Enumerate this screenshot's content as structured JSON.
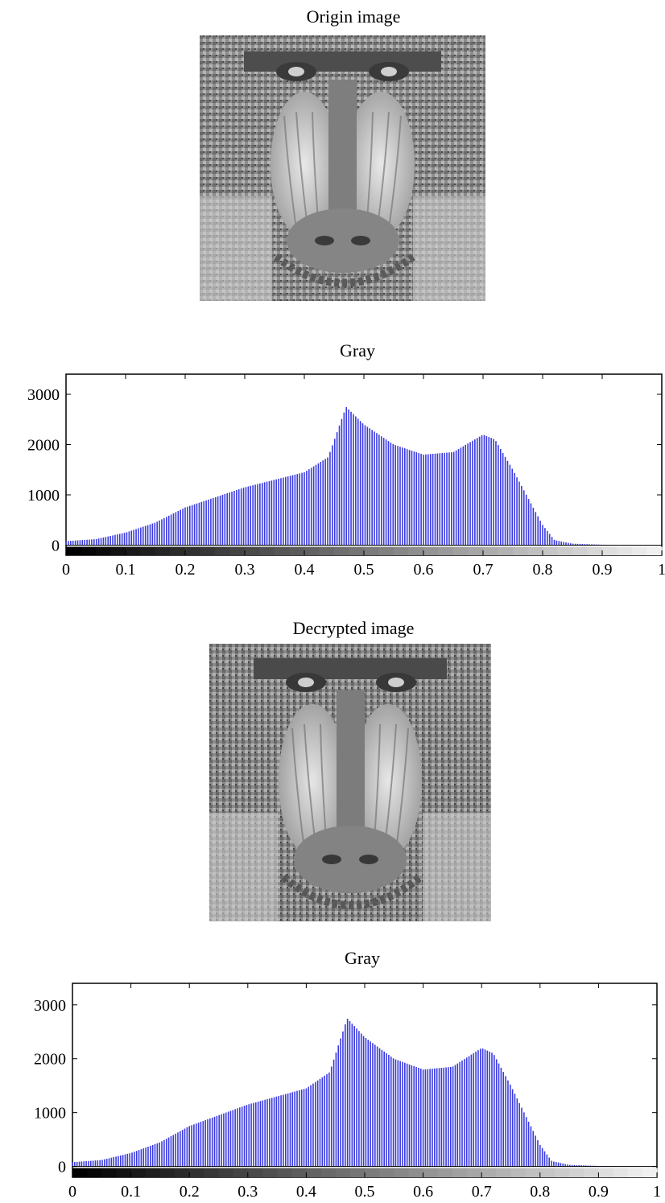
{
  "panels": [
    {
      "title": "Origin image"
    },
    {
      "title": "Gray"
    },
    {
      "title": "Decrypted image"
    },
    {
      "title": "Gray"
    }
  ],
  "chart_data": [
    {
      "type": "bar",
      "title": "Gray",
      "xlim": [
        0,
        1
      ],
      "ylim": [
        -200,
        3400
      ],
      "xticks": [
        "0",
        "0.1",
        "0.2",
        "0.3",
        "0.4",
        "0.5",
        "0.6",
        "0.7",
        "0.8",
        "0.9",
        "1"
      ],
      "yticks": [
        "0",
        "1000",
        "2000",
        "3000"
      ],
      "bar_color": "#3a3ae0",
      "colorbar": "grayscale",
      "x": [
        0.0,
        0.05,
        0.1,
        0.15,
        0.2,
        0.25,
        0.3,
        0.35,
        0.4,
        0.44,
        0.47,
        0.5,
        0.55,
        0.6,
        0.65,
        0.7,
        0.72,
        0.75,
        0.8,
        0.82,
        0.85,
        0.9,
        1.0
      ],
      "values": [
        80,
        120,
        250,
        450,
        750,
        950,
        1150,
        1300,
        1450,
        1750,
        2750,
        2400,
        2000,
        1800,
        1850,
        2200,
        2100,
        1500,
        400,
        100,
        30,
        10,
        0
      ]
    },
    {
      "type": "bar",
      "title": "Gray",
      "xlim": [
        0,
        1
      ],
      "ylim": [
        -200,
        3400
      ],
      "xticks": [
        "0",
        "0.1",
        "0.2",
        "0.3",
        "0.4",
        "0.5",
        "0.6",
        "0.7",
        "0.8",
        "0.9",
        "1"
      ],
      "yticks": [
        "0",
        "1000",
        "2000",
        "3000"
      ],
      "bar_color": "#3a3ae0",
      "colorbar": "grayscale",
      "x": [
        0.0,
        0.05,
        0.1,
        0.15,
        0.2,
        0.25,
        0.3,
        0.35,
        0.4,
        0.44,
        0.47,
        0.5,
        0.55,
        0.6,
        0.65,
        0.7,
        0.72,
        0.75,
        0.8,
        0.82,
        0.85,
        0.9,
        1.0
      ],
      "values": [
        80,
        120,
        250,
        450,
        750,
        950,
        1150,
        1300,
        1450,
        1750,
        2750,
        2400,
        2000,
        1800,
        1850,
        2200,
        2100,
        1500,
        400,
        100,
        30,
        10,
        0
      ]
    }
  ]
}
